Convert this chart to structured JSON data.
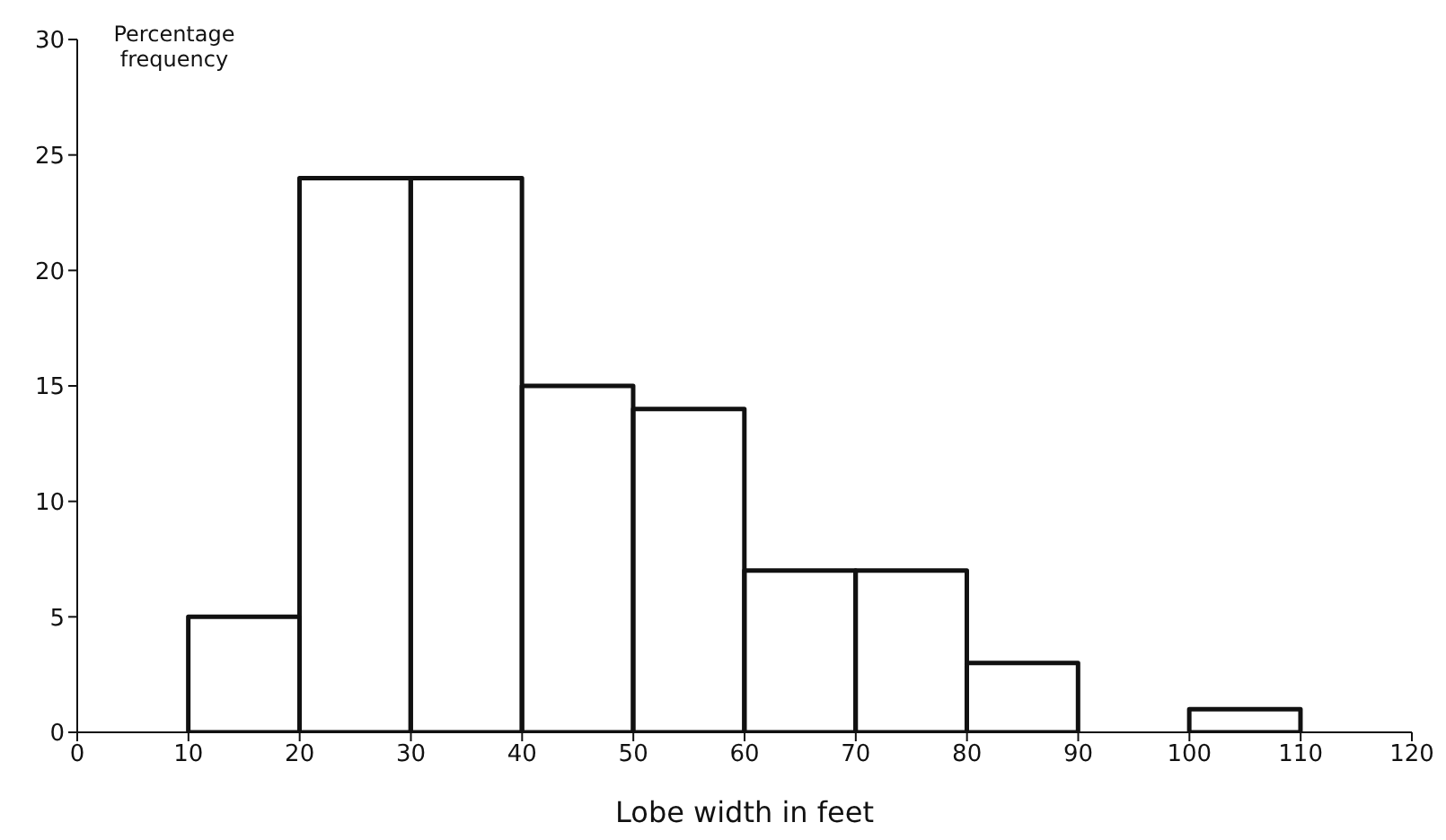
{
  "chart_data": {
    "type": "histogram",
    "xlabel": "Lobe width in feet",
    "ylabel": "Percentage frequency",
    "bins": [
      10,
      20,
      30,
      40,
      50,
      60,
      70,
      80,
      90,
      100,
      110
    ],
    "values": [
      5,
      24,
      24,
      15,
      14,
      7,
      7,
      3,
      0,
      1
    ],
    "color": "#111111",
    "xlim": [
      0,
      120
    ],
    "xticks": [
      0,
      10,
      20,
      30,
      40,
      50,
      60,
      70,
      80,
      90,
      100,
      110,
      120
    ],
    "ylim": [
      0,
      30
    ],
    "yticks": [
      0,
      5,
      10,
      15,
      20,
      25,
      30
    ],
    "grid": false
  }
}
